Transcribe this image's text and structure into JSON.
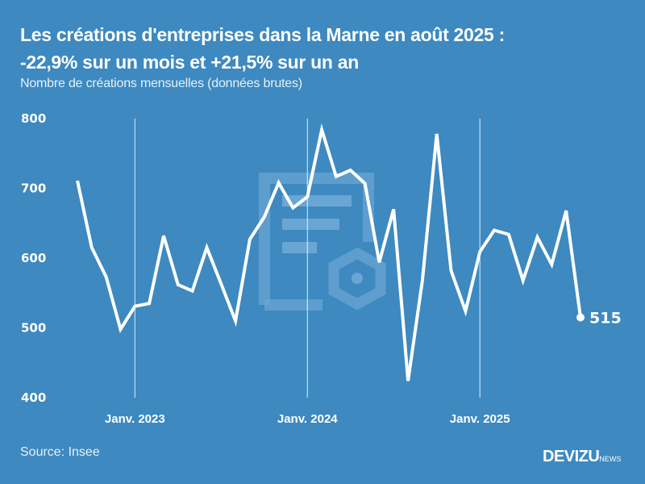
{
  "header": {
    "title_line1": "Les créations d'entreprises dans la Marne en août 2025 :",
    "title_line2": "-22,9% sur un mois et +21,5% sur un an",
    "subtitle": "Nombre de créations mensuelles (données brutes)"
  },
  "footer": {
    "source": "Source: Insee",
    "logo_main": "DEVIZU",
    "logo_sub": "NEWS"
  },
  "colors": {
    "background": "#3d89c0",
    "line": "#ffffff",
    "watermark": "#6aa6d3"
  },
  "chart_data": {
    "type": "line",
    "title": "Les créations d'entreprises dans la Marne en août 2025 : -22,9% sur un mois et +21,5% sur un an",
    "subtitle": "Nombre de créations mensuelles (données brutes)",
    "xlabel": "",
    "ylabel": "",
    "ylim": [
      400,
      800
    ],
    "yticks": [
      "800",
      "700",
      "600",
      "500",
      "400"
    ],
    "ytick_values": [
      800,
      700,
      600,
      500,
      400
    ],
    "xticks": [
      {
        "label": "Janv. 2023",
        "index": 4
      },
      {
        "label": "Janv. 2024",
        "index": 16
      },
      {
        "label": "Janv. 2025",
        "index": 28
      }
    ],
    "x": [
      "2022-09",
      "2022-10",
      "2022-11",
      "2022-12",
      "2023-01",
      "2023-02",
      "2023-03",
      "2023-04",
      "2023-05",
      "2023-06",
      "2023-07",
      "2023-08",
      "2023-09",
      "2023-10",
      "2023-11",
      "2023-12",
      "2024-01",
      "2024-02",
      "2024-03",
      "2024-04",
      "2024-05",
      "2024-06",
      "2024-07",
      "2024-08",
      "2024-09",
      "2024-10",
      "2024-11",
      "2024-12",
      "2025-01",
      "2025-02",
      "2025-03",
      "2025-04",
      "2025-05",
      "2025-06",
      "2025-07",
      "2025-08"
    ],
    "series": [
      {
        "name": "Créations mensuelles",
        "values": [
          711,
          615,
          573,
          498,
          531,
          535,
          632,
          562,
          553,
          615,
          563,
          510,
          627,
          659,
          708,
          672,
          688,
          784,
          717,
          726,
          707,
          594,
          670,
          424,
          568,
          778,
          582,
          524,
          609,
          640,
          634,
          568,
          630,
          591,
          668,
          515
        ]
      }
    ],
    "last_label": "515",
    "grid": "vertical lines at January"
  }
}
